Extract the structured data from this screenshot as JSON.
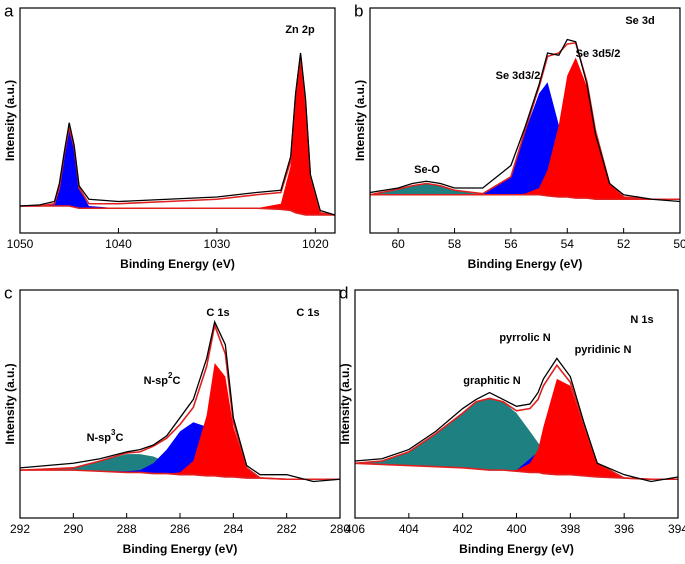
{
  "chart_data": [
    {
      "type": "line",
      "panel": "a",
      "x_label": "Binding Energy (eV)",
      "y_label": "Intensity (a.u.)",
      "annotations": [
        {
          "text": "Zn 2p"
        }
      ],
      "xlim": [
        1050,
        1018
      ],
      "xticks": [
        1050,
        1040,
        1030,
        1020
      ],
      "ylim": [
        0,
        100
      ],
      "x": [
        1050,
        1048,
        1046.5,
        1046,
        1045.5,
        1045,
        1044.5,
        1044,
        1043,
        1040,
        1035,
        1030,
        1026,
        1023.5,
        1022.5,
        1022,
        1021.5,
        1021,
        1020.5,
        1019.5,
        1018
      ],
      "series": [
        {
          "color": "#e0201f",
          "fill": false,
          "values": [
            12,
            12,
            12,
            12,
            12,
            12,
            11.5,
            11,
            11,
            11,
            11,
            11,
            11,
            10.5,
            10,
            9,
            8.5,
            8,
            8,
            8,
            8
          ]
        },
        {
          "color": "#0000ff",
          "fill": true,
          "values": [
            12,
            12,
            13,
            20,
            35,
            47,
            38,
            20,
            12,
            11,
            11,
            11,
            11,
            10.5,
            10,
            9,
            8.5,
            8,
            8,
            8,
            8
          ]
        },
        {
          "color": "#ff0000",
          "fill": true,
          "values": [
            12,
            12,
            12,
            12,
            12,
            12,
            11.5,
            11,
            11,
            11,
            11,
            11,
            11,
            13,
            30,
            60,
            79,
            58,
            25,
            9,
            8
          ]
        },
        {
          "color": "#e0201f",
          "fill": false,
          "values": [
            12,
            12,
            13,
            20,
            35,
            47,
            38,
            20,
            13,
            13,
            14,
            15,
            17,
            18,
            32,
            61,
            79,
            58,
            25,
            9,
            8
          ]
        },
        {
          "color": "#000000",
          "fill": false,
          "values": [
            12,
            12.5,
            14,
            22,
            36,
            49,
            39,
            21,
            15,
            14,
            15,
            16,
            18,
            19,
            34,
            62,
            80,
            60,
            26,
            10,
            8
          ]
        }
      ]
    },
    {
      "type": "line",
      "panel": "b",
      "x_label": "Binding Energy (eV)",
      "y_label": "Intensity (a.u.)",
      "annotations": [
        {
          "text": "Se 3d"
        },
        {
          "text": "Se 3d3/2"
        },
        {
          "text": "Se 3d5/2"
        },
        {
          "text": "Se-O"
        }
      ],
      "xlim": [
        61,
        50
      ],
      "xticks": [
        60,
        58,
        56,
        54,
        52,
        50
      ],
      "ylim": [
        0,
        100
      ],
      "x": [
        61,
        60,
        59.5,
        59,
        58.5,
        58,
        57,
        56,
        55.5,
        55,
        54.7,
        54.3,
        54,
        53.7,
        53.3,
        53,
        52.5,
        52,
        51,
        50
      ],
      "series": [
        {
          "color": "#e0201f",
          "fill": false,
          "values": [
            17,
            17,
            17,
            17,
            17,
            17,
            17,
            17,
            17,
            17,
            16.5,
            16,
            16,
            15.5,
            15.5,
            15,
            15,
            15,
            15,
            15
          ]
        },
        {
          "color": "#1e8080",
          "fill": true,
          "values": [
            17,
            19.5,
            21,
            22,
            21,
            19,
            17,
            17,
            17,
            17,
            16.5,
            16,
            16,
            15.5,
            15.5,
            15,
            15,
            15,
            15,
            15
          ]
        },
        {
          "color": "#0000ff",
          "fill": true,
          "values": [
            17,
            17,
            17,
            17,
            17,
            17,
            17.5,
            25,
            45,
            62,
            67,
            48,
            30,
            22,
            17,
            15.5,
            15,
            15,
            15,
            15
          ]
        },
        {
          "color": "#ff0000",
          "fill": true,
          "values": [
            17,
            17,
            17,
            17,
            17,
            17,
            17,
            17,
            17.5,
            20,
            28,
            48,
            70,
            78,
            65,
            45,
            22,
            16,
            15,
            15
          ]
        },
        {
          "color": "#e0201f",
          "fill": false,
          "values": [
            17,
            19.5,
            21,
            22,
            21,
            19,
            17.5,
            25,
            45.5,
            65,
            78.5,
            80,
            84,
            84.5,
            67,
            45.5,
            22,
            16,
            15,
            15
          ]
        },
        {
          "color": "#000000",
          "fill": false,
          "values": [
            18,
            20,
            22,
            23,
            22,
            20,
            20,
            30,
            47,
            66,
            80,
            79,
            86,
            85,
            66,
            44,
            22,
            17,
            15,
            14
          ]
        }
      ]
    },
    {
      "type": "line",
      "panel": "c",
      "x_label": "Binding Energy (eV)",
      "y_label": "Intensity (a.u.)",
      "annotations": [
        {
          "text": "C 1s"
        },
        {
          "text": "C 1s"
        },
        {
          "text": "N-sp",
          "sup": "2",
          "after": "C"
        },
        {
          "text": "N-sp",
          "sup": "3",
          "after": "C"
        }
      ],
      "xlim": [
        292,
        280
      ],
      "xticks": [
        292,
        290,
        288,
        286,
        284,
        282,
        280
      ],
      "ylim": [
        0,
        100
      ],
      "x": [
        292,
        290,
        289,
        288,
        287.5,
        287,
        286.5,
        286,
        285.5,
        285,
        284.7,
        284.3,
        284,
        283.5,
        283,
        282,
        281,
        280
      ],
      "series": [
        {
          "color": "#e0201f",
          "fill": false,
          "values": [
            21,
            21,
            20.5,
            20,
            20,
            19.5,
            19.5,
            19,
            19,
            18.5,
            18.5,
            18,
            18,
            17.5,
            17.5,
            17,
            17,
            17
          ]
        },
        {
          "color": "#1e8080",
          "fill": true,
          "values": [
            21,
            22,
            25,
            28,
            28,
            27,
            24.5,
            21,
            19.5,
            18.5,
            18.5,
            18,
            18,
            17.5,
            17.5,
            17,
            17,
            17
          ]
        },
        {
          "color": "#0000ff",
          "fill": true,
          "values": [
            21,
            21,
            20.5,
            20.5,
            21,
            24,
            30,
            38,
            42,
            40,
            35,
            28,
            20,
            17.5,
            17.5,
            17,
            17,
            17
          ]
        },
        {
          "color": "#ff0000",
          "fill": true,
          "values": [
            21,
            21,
            20.5,
            20,
            20,
            19.5,
            19.5,
            20,
            25,
            45,
            68,
            62,
            40,
            22,
            17.6,
            17,
            17,
            17
          ]
        },
        {
          "color": "#e0201f",
          "fill": false,
          "values": [
            21,
            22,
            25,
            28.5,
            29,
            31.5,
            35,
            41,
            48.5,
            66.5,
            84.5,
            72,
            42,
            22,
            17.6,
            17,
            17,
            17
          ]
        },
        {
          "color": "#000000",
          "fill": false,
          "values": [
            22,
            24,
            26,
            29,
            30,
            32,
            36,
            44,
            52,
            70,
            86,
            76,
            44,
            23,
            19,
            19,
            16,
            17
          ]
        }
      ]
    },
    {
      "type": "line",
      "panel": "d",
      "x_label": "Binding Energy (eV)",
      "y_label": "Intensity (a.u.)",
      "annotations": [
        {
          "text": "N 1s"
        },
        {
          "text": "pyrrolic N"
        },
        {
          "text": "pyridinic N"
        },
        {
          "text": "graphitic N"
        }
      ],
      "xlim": [
        406,
        394
      ],
      "xticks": [
        406,
        404,
        402,
        400,
        398,
        396,
        394
      ],
      "ylim": [
        0,
        100
      ],
      "x": [
        406,
        405,
        404,
        403,
        402,
        401.5,
        401,
        400.5,
        400,
        399.5,
        399.2,
        399,
        398.5,
        398,
        397.5,
        397,
        396,
        395,
        394
      ],
      "series": [
        {
          "color": "#e0201f",
          "fill": false,
          "values": [
            24,
            23.5,
            23,
            22.5,
            22,
            21.5,
            21,
            21,
            20.5,
            20,
            20,
            19.5,
            19,
            19,
            18.5,
            18,
            17.5,
            17,
            17
          ]
        },
        {
          "color": "#1e8080",
          "fill": true,
          "values": [
            24,
            25,
            29,
            37,
            46,
            51,
            52.5,
            51,
            46,
            38,
            33,
            30,
            24,
            20.5,
            19,
            18,
            17.5,
            17,
            17
          ]
        },
        {
          "color": "#0000ff",
          "fill": true,
          "values": [
            24,
            23.5,
            23,
            22.5,
            22,
            21.5,
            21,
            21,
            21,
            26,
            29,
            27,
            20,
            19,
            18.5,
            18,
            17.5,
            17,
            17
          ]
        },
        {
          "color": "#ff0000",
          "fill": true,
          "values": [
            24,
            23.5,
            23,
            22.5,
            22,
            21.5,
            21,
            21,
            21,
            24,
            30,
            40,
            61,
            58,
            40,
            24,
            17.5,
            17,
            17
          ]
        },
        {
          "color": "#e0201f",
          "fill": false,
          "values": [
            24,
            25,
            29,
            37,
            46,
            51,
            52.5,
            51,
            47,
            48,
            52,
            58,
            67,
            59.5,
            40.5,
            24,
            17.5,
            17,
            17
          ]
        },
        {
          "color": "#000000",
          "fill": false,
          "values": [
            25,
            26,
            30,
            38,
            48,
            52,
            55,
            52,
            49,
            50,
            55,
            61,
            70,
            62,
            42,
            24,
            19,
            16,
            18
          ]
        }
      ]
    }
  ]
}
